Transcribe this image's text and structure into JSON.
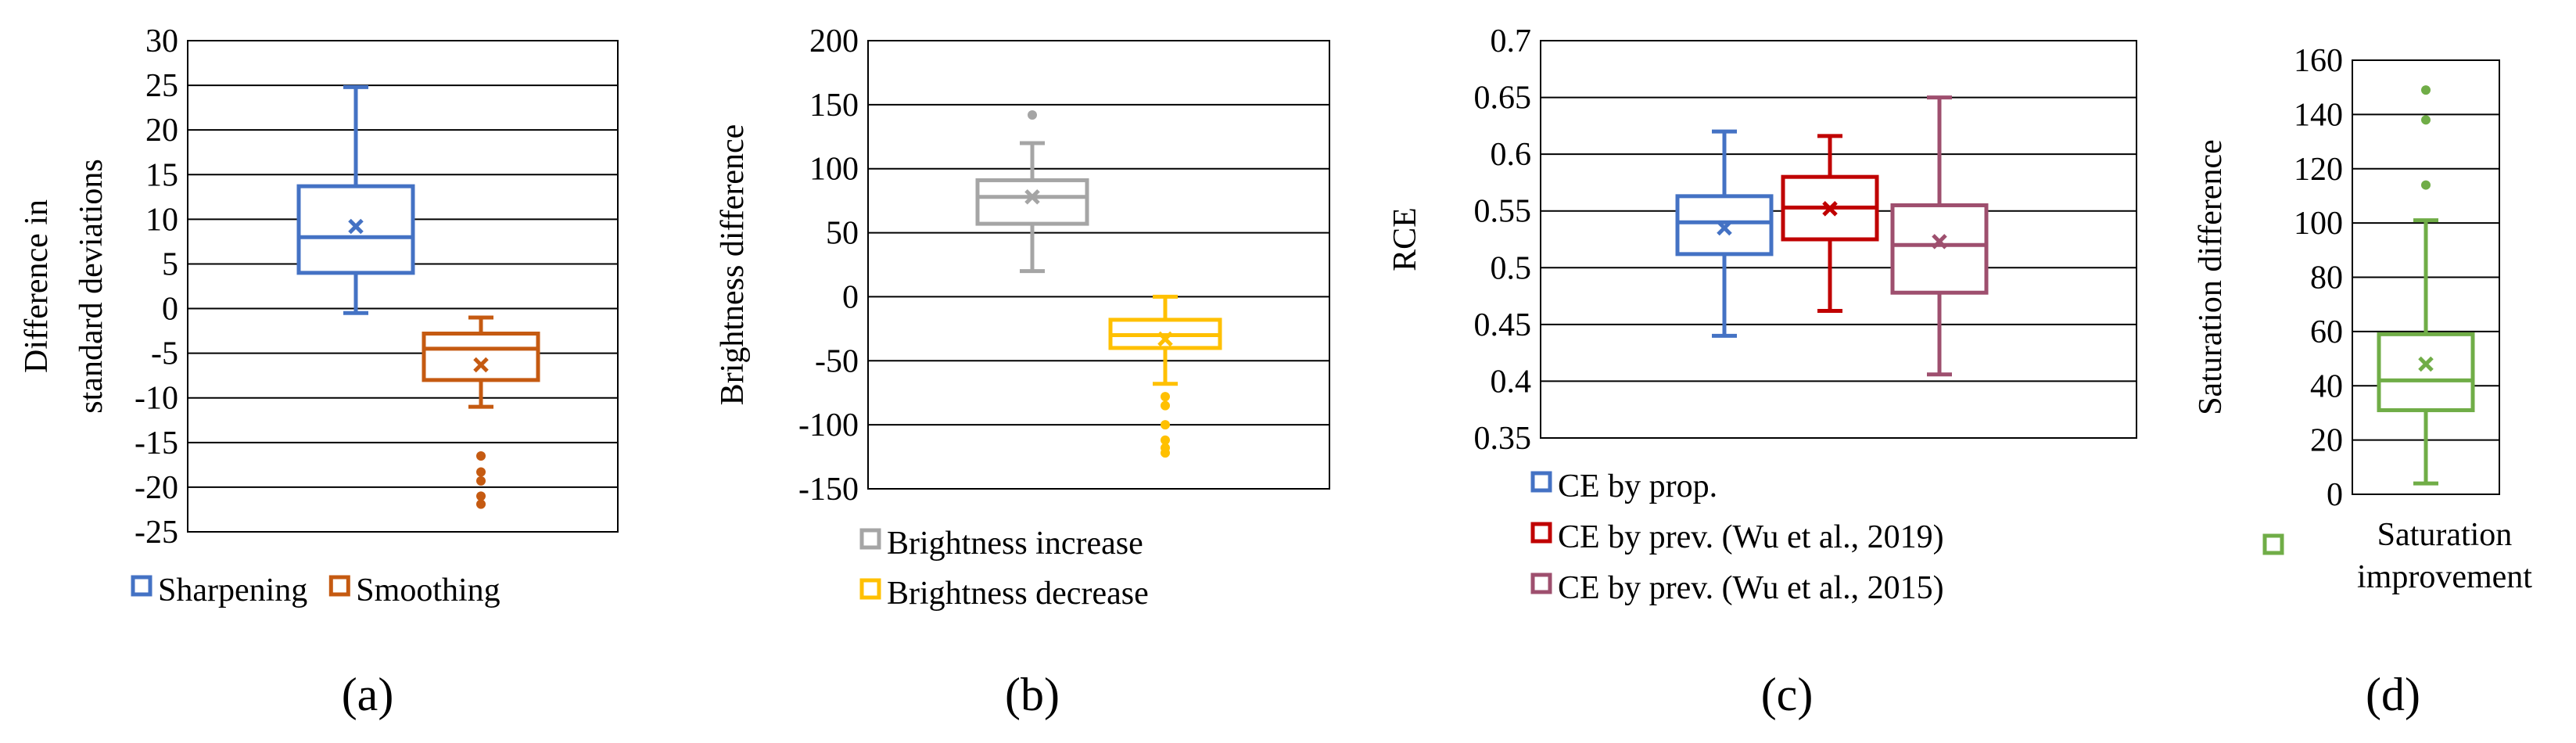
{
  "chart_data": [
    {
      "type": "box",
      "panel_label": "(a)",
      "ylabel": "Difference in standard deviations",
      "ylabel_lines": [
        "Difference in",
        "standard deviations"
      ],
      "ylim": [
        -25,
        30
      ],
      "ytick_labels": [
        "30",
        "25",
        "20",
        "15",
        "10",
        "5",
        "0",
        "-5",
        "-10",
        "-15",
        "-20",
        "-25"
      ],
      "grid": true,
      "legend_position": "bottom",
      "series": [
        {
          "name": "Sharpening",
          "color": "#4472C4",
          "min": -0.5,
          "q1": 4,
          "median": 8,
          "q3": 13.7,
          "max": 24.8,
          "mean": 9.2,
          "outliers": []
        },
        {
          "name": "Smoothing",
          "color": "#C55A11",
          "min": -11,
          "q1": -8,
          "median": -4.5,
          "q3": -2.8,
          "max": -1,
          "mean": -6.3,
          "outliers": [
            -16.5,
            -18.3,
            -19.3,
            -21,
            -21.9
          ]
        }
      ]
    },
    {
      "type": "box",
      "panel_label": "(b)",
      "ylabel": "Brightness difference",
      "ylabel_lines": [
        "Brightness difference"
      ],
      "ylim": [
        -150,
        200
      ],
      "ytick_labels": [
        "200",
        "150",
        "100",
        "50",
        "0",
        "-50",
        "-100",
        "-150"
      ],
      "grid": true,
      "legend_position": "bottom",
      "series": [
        {
          "name": "Brightness increase",
          "color": "#A5A5A5",
          "min": 20,
          "q1": 57,
          "median": 78,
          "q3": 91,
          "max": 120,
          "mean": 78,
          "outliers": [
            142
          ]
        },
        {
          "name": "Brightness decrease",
          "color": "#FFC000",
          "min": -68,
          "q1": -40,
          "median": -30,
          "q3": -18,
          "max": 0,
          "mean": -33,
          "outliers": [
            -78,
            -85,
            -100,
            -112,
            -118,
            -122
          ]
        }
      ]
    },
    {
      "type": "box",
      "panel_label": "(c)",
      "ylabel": "RCE",
      "ylabel_lines": [
        "RCE"
      ],
      "ylim": [
        0.35,
        0.7
      ],
      "ytick_labels": [
        "0.7",
        "0.65",
        "0.6",
        "0.55",
        "0.5",
        "0.45",
        "0.4",
        "0.35"
      ],
      "grid": true,
      "legend_position": "bottom",
      "series": [
        {
          "name": "CE by prop.",
          "color": "#4472C4",
          "min": 0.44,
          "q1": 0.512,
          "median": 0.54,
          "q3": 0.563,
          "max": 0.62,
          "mean": 0.535,
          "outliers": []
        },
        {
          "name": "CE by prev. (Wu et al., 2019)",
          "color": "#C00000",
          "min": 0.462,
          "q1": 0.525,
          "median": 0.553,
          "q3": 0.58,
          "max": 0.616,
          "mean": 0.552,
          "outliers": []
        },
        {
          "name": "CE by prev. (Wu et al., 2015)",
          "color": "#9E4F6E",
          "min": 0.406,
          "q1": 0.478,
          "median": 0.52,
          "q3": 0.555,
          "max": 0.65,
          "mean": 0.523,
          "outliers": []
        }
      ]
    },
    {
      "type": "box",
      "panel_label": "(d)",
      "ylabel": "Saturation difference",
      "ylabel_lines": [
        "Saturation difference"
      ],
      "ylim": [
        0,
        160
      ],
      "ytick_labels": [
        "160",
        "140",
        "120",
        "100",
        "80",
        "60",
        "40",
        "20",
        "0"
      ],
      "grid": true,
      "legend_position": "bottom",
      "series": [
        {
          "name": "Saturation improvement",
          "legend_lines": [
            "Saturation",
            "improvement"
          ],
          "color": "#70AD47",
          "min": 4,
          "q1": 31,
          "median": 42,
          "q3": 59,
          "max": 101,
          "mean": 48,
          "outliers": [
            114,
            138,
            149
          ]
        }
      ]
    }
  ]
}
